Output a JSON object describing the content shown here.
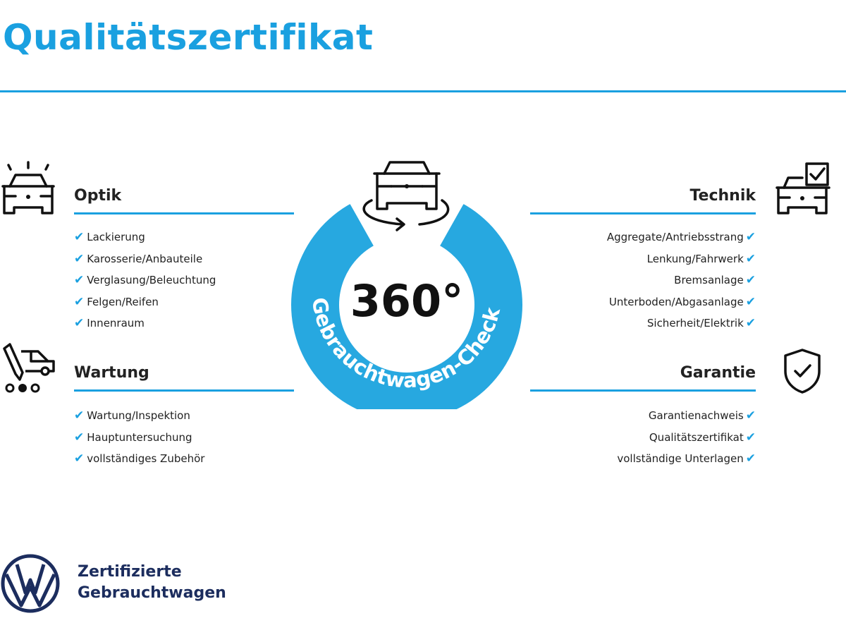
{
  "title": "Qualitätszertifikat",
  "accent_color": "#1aa0e0",
  "center": {
    "big_text": "360°",
    "ring_text": "Gebrauchtwagen-Check",
    "icon": "car-rotate-icon"
  },
  "optik": {
    "heading": "Optik",
    "icon": "car-lights-icon",
    "items": [
      "Lackierung",
      "Karosserie/Anbauteile",
      "Verglasung/Beleuchtung",
      "Felgen/Reifen",
      "Innenraum"
    ]
  },
  "wartung": {
    "heading": "Wartung",
    "icon": "car-service-icon",
    "items": [
      "Wartung/Inspektion",
      "Hauptuntersuchung",
      "vollständiges Zubehör"
    ]
  },
  "technik": {
    "heading": "Technik",
    "icon": "car-checkbox-icon",
    "items": [
      "Aggregate/Antriebsstrang",
      "Lenkung/Fahrwerk",
      "Bremsanlage",
      "Unterboden/Abgasanlage",
      "Sicherheit/Elektrik"
    ]
  },
  "garantie": {
    "heading": "Garantie",
    "icon": "shield-check-icon",
    "items": [
      "Garantienachweis",
      "Qualitätszertifikat",
      "vollständige Unterlagen"
    ]
  },
  "check_glyph": "✔",
  "logo": {
    "brand": "VW",
    "line1": "Zertifizierte",
    "line2": "Gebrauchtwagen"
  }
}
